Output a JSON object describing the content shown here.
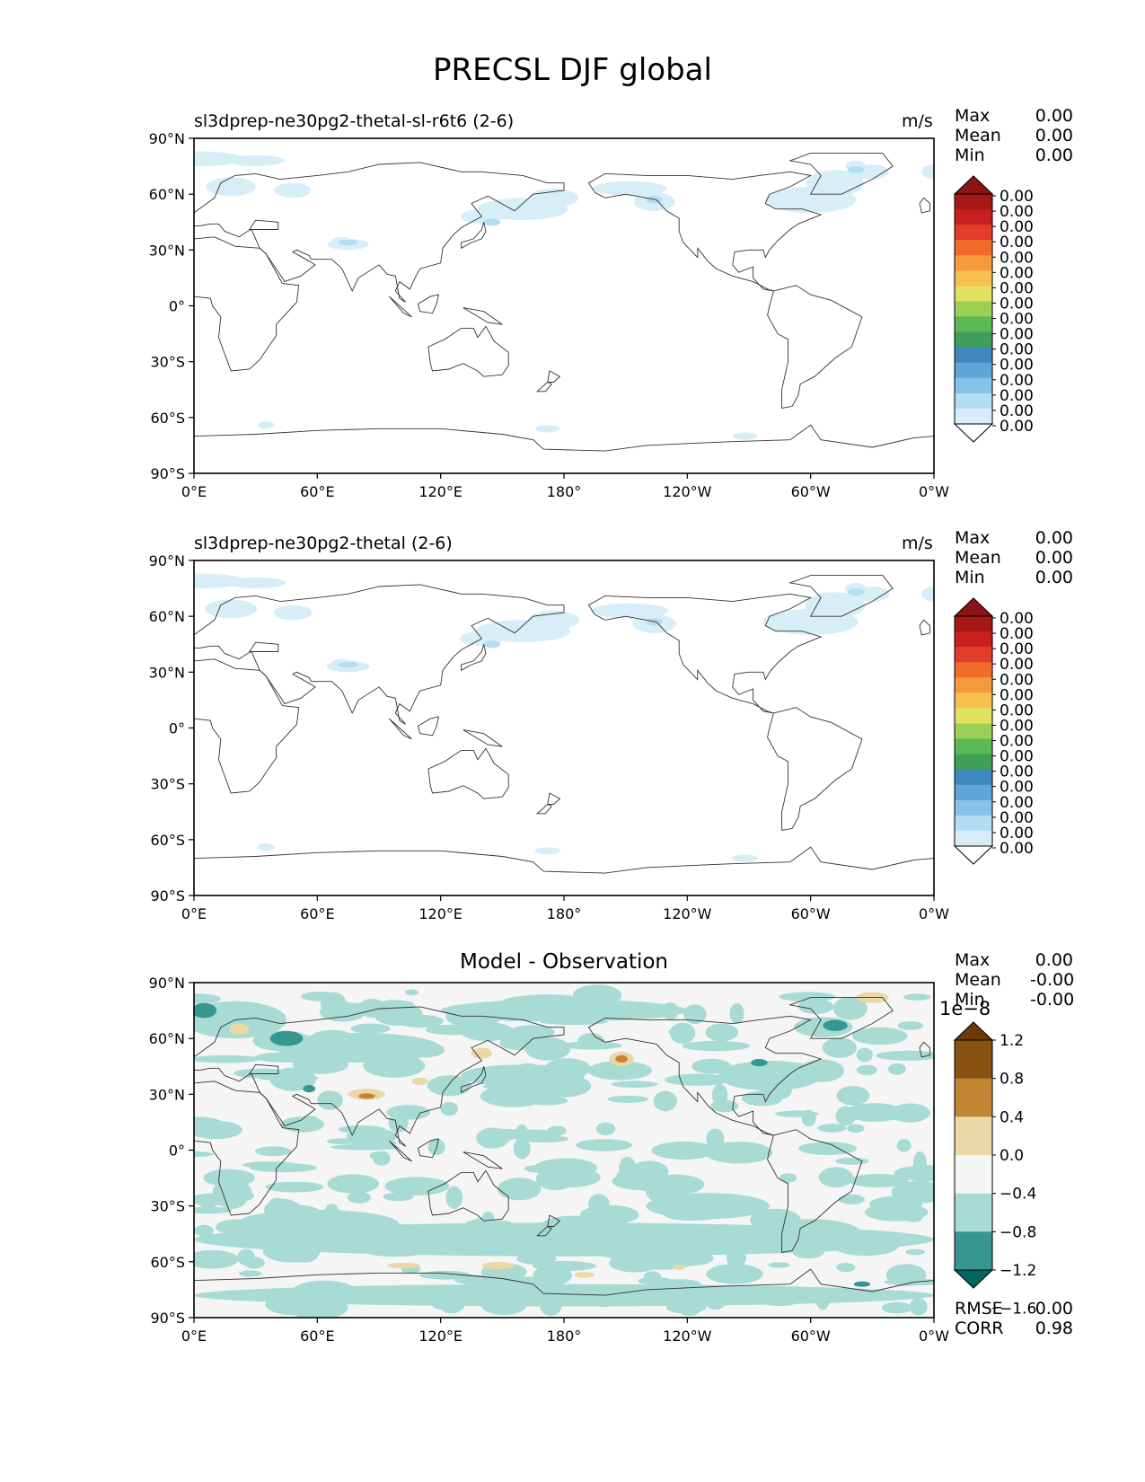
{
  "figure_title": "PRECSL DJF global",
  "chart_data": [
    {
      "type": "heatmap",
      "title": "sl3dprep-ne30pg2-thetal-sl-r6t6 (2-6)",
      "units": "m/s",
      "stats": {
        "max": "0.00",
        "mean": "0.00",
        "min": "0.00"
      },
      "x_ticks": [
        "0°E",
        "60°E",
        "120°E",
        "180°",
        "120°W",
        "60°W",
        "0°W"
      ],
      "y_ticks": [
        "90°N",
        "60°N",
        "30°N",
        "0°",
        "30°S",
        "60°S",
        "90°S"
      ],
      "xlim": [
        0,
        360
      ],
      "ylim": [
        -90,
        90
      ],
      "colorbar_labels": [
        "0.00",
        "0.00",
        "0.00",
        "0.00",
        "0.00",
        "0.00",
        "0.00",
        "0.00",
        "0.00",
        "0.00",
        "0.00",
        "0.00",
        "0.00",
        "0.00",
        "0.00",
        "0.00"
      ],
      "colorbar_colors": [
        "#ffffff",
        "#d7eef9",
        "#b4ddf4",
        "#86c2ea",
        "#5ea6d8",
        "#3f88c0",
        "#3e9f59",
        "#5ab855",
        "#9ccf55",
        "#e3e160",
        "#f8c04e",
        "#f59a3c",
        "#ef6c2b",
        "#e23d26",
        "#c81f1f",
        "#a51818",
        "#8b1414"
      ]
    },
    {
      "type": "heatmap",
      "title": "sl3dprep-ne30pg2-thetal (2-6)",
      "units": "m/s",
      "stats": {
        "max": "0.00",
        "mean": "0.00",
        "min": "0.00"
      },
      "x_ticks": [
        "0°E",
        "60°E",
        "120°E",
        "180°",
        "120°W",
        "60°W",
        "0°W"
      ],
      "y_ticks": [
        "90°N",
        "60°N",
        "30°N",
        "0°",
        "30°S",
        "60°S",
        "90°S"
      ],
      "xlim": [
        0,
        360
      ],
      "ylim": [
        -90,
        90
      ],
      "colorbar_labels": [
        "0.00",
        "0.00",
        "0.00",
        "0.00",
        "0.00",
        "0.00",
        "0.00",
        "0.00",
        "0.00",
        "0.00",
        "0.00",
        "0.00",
        "0.00",
        "0.00",
        "0.00",
        "0.00"
      ],
      "colorbar_colors": [
        "#ffffff",
        "#d7eef9",
        "#b4ddf4",
        "#86c2ea",
        "#5ea6d8",
        "#3f88c0",
        "#3e9f59",
        "#5ab855",
        "#9ccf55",
        "#e3e160",
        "#f8c04e",
        "#f59a3c",
        "#ef6c2b",
        "#e23d26",
        "#c81f1f",
        "#a51818",
        "#8b1414"
      ]
    },
    {
      "type": "heatmap",
      "title": "Model - Observation",
      "stats": {
        "max": "0.00",
        "mean": "-0.00",
        "min": "-0.00"
      },
      "stats_bottom": {
        "rmse": "0.00",
        "corr": "0.98"
      },
      "x_ticks": [
        "0°E",
        "60°E",
        "120°E",
        "180°",
        "120°W",
        "60°W",
        "0°W"
      ],
      "y_ticks": [
        "90°N",
        "60°N",
        "30°N",
        "0°",
        "30°S",
        "60°S",
        "90°S"
      ],
      "xlim": [
        0,
        360
      ],
      "ylim": [
        -90,
        90
      ],
      "colorbar_offset": "1e−8",
      "colorbar_labels": [
        "1.2",
        "0.8",
        "0.4",
        "0.0",
        "−0.4",
        "−0.8",
        "−1.2",
        "−1.6"
      ],
      "colorbar_colors": [
        "#01665e",
        "#35978f",
        "#a7dbd3",
        "#f5f5f5",
        "#ead8a6",
        "#c38534",
        "#8a5210",
        "#6b3a0b"
      ]
    }
  ],
  "labels": {
    "max": "Max",
    "mean": "Mean",
    "min": "Min",
    "rmse": "RMSE",
    "corr": "CORR"
  },
  "colors": {
    "light_precip": "#d7eef9",
    "mid_precip": "#b4ddf4",
    "diff_pos": "#a7dbd3",
    "diff_pos_strong": "#35978f",
    "diff_neg": "#ead8a6",
    "diff_neg_strong": "#c38534",
    "ocean_bg": "#f5f5f5"
  }
}
